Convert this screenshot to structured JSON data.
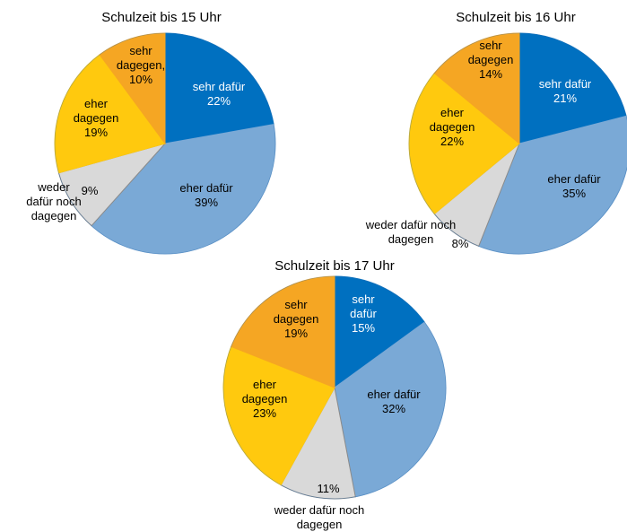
{
  "chart_data": [
    {
      "type": "pie",
      "title": "Schulzeit bis 15 Uhr",
      "slices": [
        {
          "label": "sehr dafür",
          "value": 22,
          "color": "#0070c0",
          "text_color": "#ffffff",
          "text": "sehr dafür\n22%"
        },
        {
          "label": "eher dafür",
          "value": 39,
          "color": "#7aa9d6",
          "text_color": "#000000",
          "text": "eher dafür\n39%"
        },
        {
          "label": "weder dafür noch dagegen",
          "value": 9,
          "color": "#d9d9d9",
          "text_color": "#000000",
          "text": "9%",
          "outer_text": "weder\ndafür noch\ndagegen"
        },
        {
          "label": "eher dagegen",
          "value": 19,
          "color": "#ffc90e",
          "text_color": "#000000",
          "text": "eher\ndagegen\n19%"
        },
        {
          "label": "sehr dagegen",
          "value": 10,
          "color": "#f5a623",
          "text_color": "#000000",
          "text": "sehr\ndagegen,\n10%"
        }
      ]
    },
    {
      "type": "pie",
      "title": "Schulzeit bis 16 Uhr",
      "slices": [
        {
          "label": "sehr dafür",
          "value": 21,
          "color": "#0070c0",
          "text_color": "#ffffff",
          "text": "sehr dafür\n21%"
        },
        {
          "label": "eher dafür",
          "value": 35,
          "color": "#7aa9d6",
          "text_color": "#000000",
          "text": "eher dafür\n35%"
        },
        {
          "label": "weder dafür noch dagegen",
          "value": 8,
          "color": "#d9d9d9",
          "text_color": "#000000",
          "text": "8%",
          "outer_text": "weder dafür noch\ndagegen"
        },
        {
          "label": "eher dagegen",
          "value": 22,
          "color": "#ffc90e",
          "text_color": "#000000",
          "text": "eher\ndagegen\n22%"
        },
        {
          "label": "sehr dagegen",
          "value": 14,
          "color": "#f5a623",
          "text_color": "#000000",
          "text": "sehr\ndagegen\n14%"
        }
      ]
    },
    {
      "type": "pie",
      "title": "Schulzeit bis 17 Uhr",
      "slices": [
        {
          "label": "sehr dafür",
          "value": 15,
          "color": "#0070c0",
          "text_color": "#ffffff",
          "text": "sehr\ndafür\n15%"
        },
        {
          "label": "eher dafür",
          "value": 32,
          "color": "#7aa9d6",
          "text_color": "#000000",
          "text": "eher dafür\n32%"
        },
        {
          "label": "weder dafür noch dagegen",
          "value": 11,
          "color": "#d9d9d9",
          "text_color": "#000000",
          "text": "11%",
          "outer_text": "weder dafür noch\ndagegen"
        },
        {
          "label": "eher dagegen",
          "value": 23,
          "color": "#ffc90e",
          "text_color": "#000000",
          "text": "eher\ndagegen\n23%"
        },
        {
          "label": "sehr dagegen",
          "value": 19,
          "color": "#f5a623",
          "text_color": "#000000",
          "text": "sehr\ndagegen\n19%"
        }
      ]
    }
  ]
}
